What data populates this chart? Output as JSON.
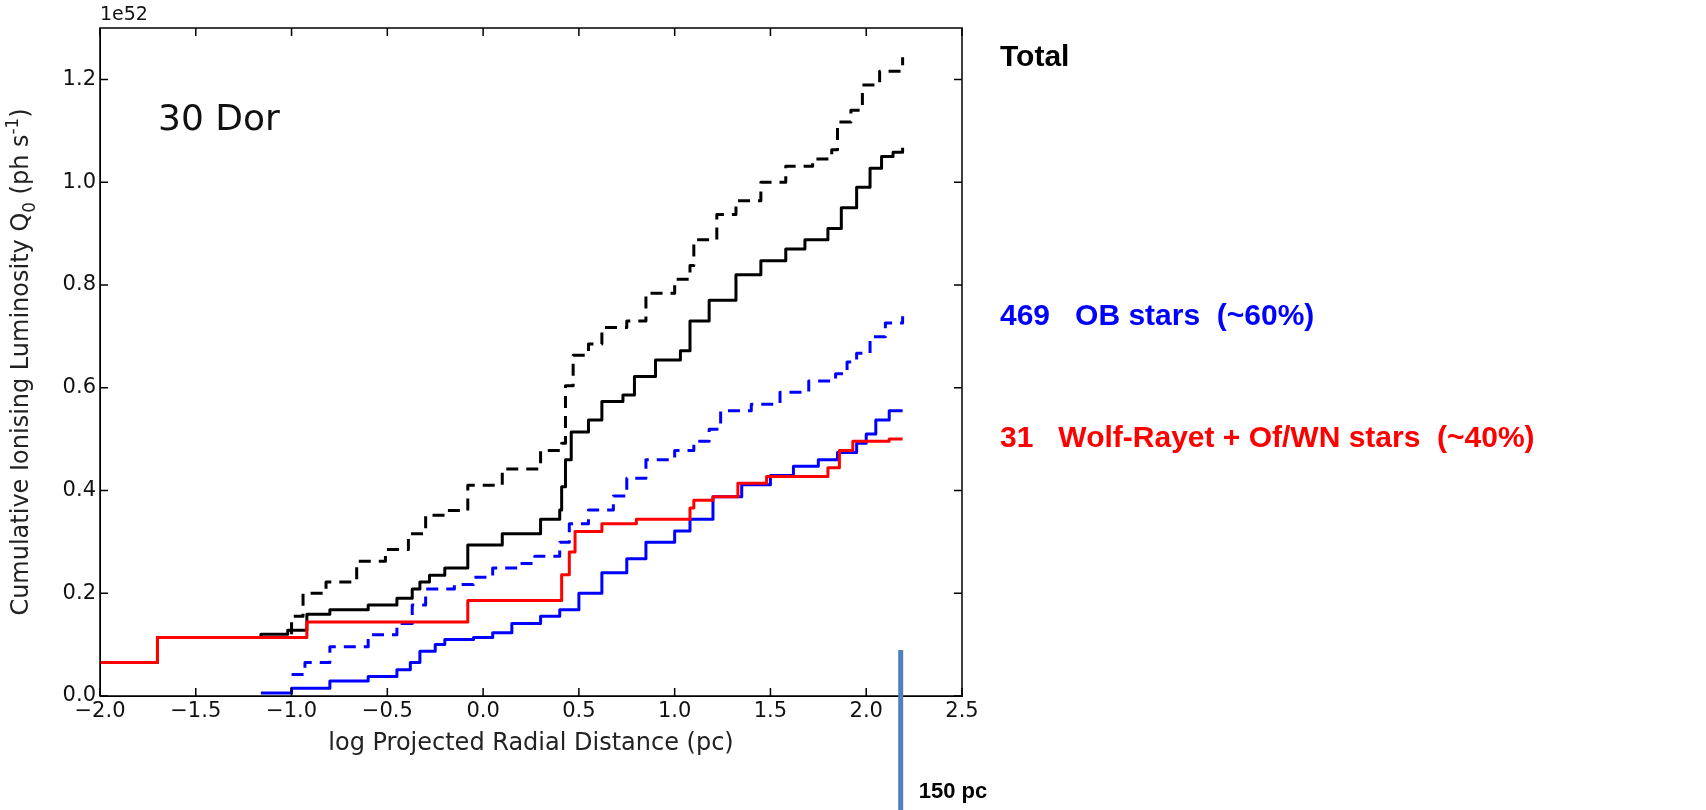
{
  "chart_data": {
    "type": "step",
    "xlabel": "log Projected Radial Distance (pc)",
    "ylabel": "Cumulative Ionising Luminosity Q$_{0}$ (ph s$^{-1}$)",
    "annotations": [
      "30 Dor",
      "1e52"
    ],
    "xlim": [
      -2.0,
      2.5
    ],
    "xticks": [
      {
        "value": -2,
        "label": "−2.0"
      },
      {
        "value": -1.5,
        "label": "−1.5"
      },
      {
        "value": -1,
        "label": "−1.0"
      },
      {
        "value": -0.5,
        "label": "−0.5"
      },
      {
        "value": 0,
        "label": "0.0"
      },
      0.5,
      {
        "value": 1,
        "label": "1.0"
      },
      1.5,
      {
        "value": 2,
        "label": "2.0"
      },
      2.5
    ],
    "ylim": [
      0,
      1.3
    ],
    "yticks": [
      {
        "value": 0,
        "label": "0.0"
      },
      0.2,
      0.4,
      0.6,
      0.8,
      {
        "value": 1,
        "label": "1.0"
      },
      1.2
    ],
    "grid": false,
    "legend": "right",
    "marker": "none",
    "ref_lines": [
      {
        "axis": "x",
        "value": 2.18,
        "label": "150 pc",
        "color": "#4f81bd"
      }
    ],
    "series": [
      {
        "name": "Total",
        "color": "#000000",
        "line_style": "solid",
        "x": [
          -2.0,
          -1.7,
          -1.16,
          -1.02,
          -0.92,
          -0.8,
          -0.6,
          -0.45,
          -0.37,
          -0.33,
          -0.28,
          -0.2,
          -0.08,
          0.1,
          0.3,
          0.4,
          0.41,
          0.43,
          0.46,
          0.55,
          0.62,
          0.73,
          0.79,
          0.9,
          1.03,
          1.08,
          1.18,
          1.32,
          1.45,
          1.58,
          1.68,
          1.8,
          1.87,
          1.95,
          2.02,
          2.08,
          2.14,
          2.19
        ],
        "values": [
          0.065,
          0.114,
          0.12,
          0.128,
          0.159,
          0.168,
          0.177,
          0.19,
          0.208,
          0.222,
          0.235,
          0.249,
          0.294,
          0.316,
          0.344,
          0.362,
          0.407,
          0.46,
          0.514,
          0.537,
          0.573,
          0.586,
          0.622,
          0.654,
          0.672,
          0.73,
          0.77,
          0.82,
          0.847,
          0.87,
          0.888,
          0.91,
          0.95,
          0.99,
          1.027,
          1.05,
          1.058,
          1.067
        ]
      },
      {
        "color": "#000000",
        "line_style": "dashed",
        "x": [
          -2.0,
          -1.7,
          -1.0,
          -0.94,
          -0.82,
          -0.66,
          -0.51,
          -0.39,
          -0.3,
          -0.2,
          -0.08,
          0.1,
          0.3,
          0.41,
          0.43,
          0.47,
          0.55,
          0.62,
          0.75,
          0.85,
          1.0,
          1.08,
          1.1,
          1.22,
          1.32,
          1.45,
          1.58,
          1.72,
          1.82,
          1.85,
          1.92,
          1.98,
          2.07,
          2.19
        ],
        "values": [
          0.065,
          0.114,
          0.155,
          0.2,
          0.222,
          0.262,
          0.285,
          0.316,
          0.352,
          0.361,
          0.41,
          0.442,
          0.478,
          0.492,
          0.604,
          0.663,
          0.685,
          0.717,
          0.73,
          0.784,
          0.811,
          0.838,
          0.888,
          0.937,
          0.964,
          1.0,
          1.031,
          1.045,
          1.063,
          1.117,
          1.14,
          1.189,
          1.216,
          1.243
        ]
      },
      {
        "name": "469   OB stars  (~60%)",
        "color": "#0000ff",
        "line_style": "solid",
        "x": [
          -1.16,
          -1.0,
          -0.8,
          -0.6,
          -0.45,
          -0.38,
          -0.33,
          -0.25,
          -0.2,
          -0.05,
          0.05,
          0.15,
          0.3,
          0.4,
          0.5,
          0.62,
          0.75,
          0.85,
          1.0,
          1.08,
          1.2,
          1.35,
          1.5,
          1.62,
          1.75,
          1.85,
          1.95,
          2.0,
          2.05,
          2.12,
          2.19
        ],
        "values": [
          0.006,
          0.015,
          0.029,
          0.038,
          0.051,
          0.065,
          0.087,
          0.1,
          0.11,
          0.114,
          0.123,
          0.141,
          0.155,
          0.168,
          0.2,
          0.24,
          0.267,
          0.299,
          0.321,
          0.344,
          0.388,
          0.411,
          0.429,
          0.447,
          0.46,
          0.474,
          0.492,
          0.51,
          0.537,
          0.555,
          0.555
        ]
      },
      {
        "color": "#0000ff",
        "line_style": "dashed",
        "x": [
          -1.0,
          -0.93,
          -0.8,
          -0.6,
          -0.45,
          -0.37,
          -0.3,
          -0.15,
          -0.05,
          0.05,
          0.18,
          0.27,
          0.4,
          0.45,
          0.55,
          0.68,
          0.75,
          0.85,
          1.0,
          1.1,
          1.18,
          1.24,
          1.4,
          1.55,
          1.7,
          1.84,
          1.9,
          1.95,
          2.02,
          2.1,
          2.19
        ],
        "values": [
          0.042,
          0.065,
          0.096,
          0.119,
          0.141,
          0.177,
          0.208,
          0.217,
          0.231,
          0.249,
          0.258,
          0.272,
          0.299,
          0.335,
          0.362,
          0.389,
          0.424,
          0.46,
          0.478,
          0.496,
          0.519,
          0.555,
          0.568,
          0.591,
          0.613,
          0.627,
          0.65,
          0.667,
          0.699,
          0.726,
          0.739
        ]
      },
      {
        "name": "31   Wolf-Rayet + Of/WN stars  (~40%)",
        "color": "#ff0000",
        "line_style": "solid",
        "x": [
          -2.0,
          -1.7,
          -0.92,
          -0.08,
          0.41,
          0.45,
          0.48,
          0.62,
          0.8,
          1.08,
          1.1,
          1.2,
          1.33,
          1.48,
          1.8,
          1.86,
          1.93,
          2.12,
          2.19
        ],
        "values": [
          0.065,
          0.114,
          0.144,
          0.186,
          0.236,
          0.28,
          0.32,
          0.335,
          0.344,
          0.366,
          0.381,
          0.388,
          0.414,
          0.427,
          0.444,
          0.478,
          0.496,
          0.5,
          0.5
        ]
      }
    ]
  }
}
